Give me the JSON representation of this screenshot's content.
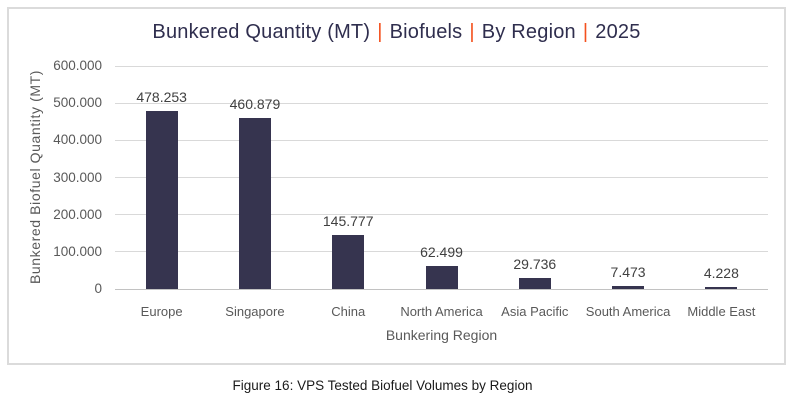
{
  "chart": {
    "title": {
      "segments": [
        "Bunkered Quantity (MT)",
        "Biofuels",
        "By Region",
        "2025"
      ],
      "separator": "|"
    },
    "y_axis": {
      "title": "Bunkered Biofuel Quantity (MT)"
    },
    "x_axis": {
      "title": "Bunkering Region"
    }
  },
  "chart_data": {
    "type": "bar",
    "title": "Bunkered Quantity (MT) | Biofuels | By Region | 2025",
    "categories": [
      "Europe",
      "Singapore",
      "China",
      "North America",
      "Asia Pacific",
      "South America",
      "Middle East"
    ],
    "values": [
      478253,
      460879,
      145777,
      62499,
      29736,
      7473,
      4228
    ],
    "value_labels": [
      "478.253",
      "460.879",
      "145.777",
      "62.499",
      "29.736",
      "7.473",
      "4.228"
    ],
    "xlabel": "Bunkering Region",
    "ylabel": "Bunkered Biofuel Quantity (MT)",
    "ylim": [
      0,
      600000
    ],
    "ytick_labels": [
      "0",
      "100.000",
      "200.000",
      "300.000",
      "400.000",
      "500.000",
      "600.000"
    ],
    "grid": true,
    "legend": false
  },
  "colors": {
    "bar": "#36344F",
    "title_text": "#2F2E4E",
    "separator": "#F4511E",
    "axis_text": "#595959",
    "value_label_text": "#404040",
    "gridline": "#D9D9D9",
    "axis_line": "#C2C2C2",
    "chart_border": "#DBDBDB"
  },
  "caption": "Figure 16: VPS Tested Biofuel Volumes by Region"
}
